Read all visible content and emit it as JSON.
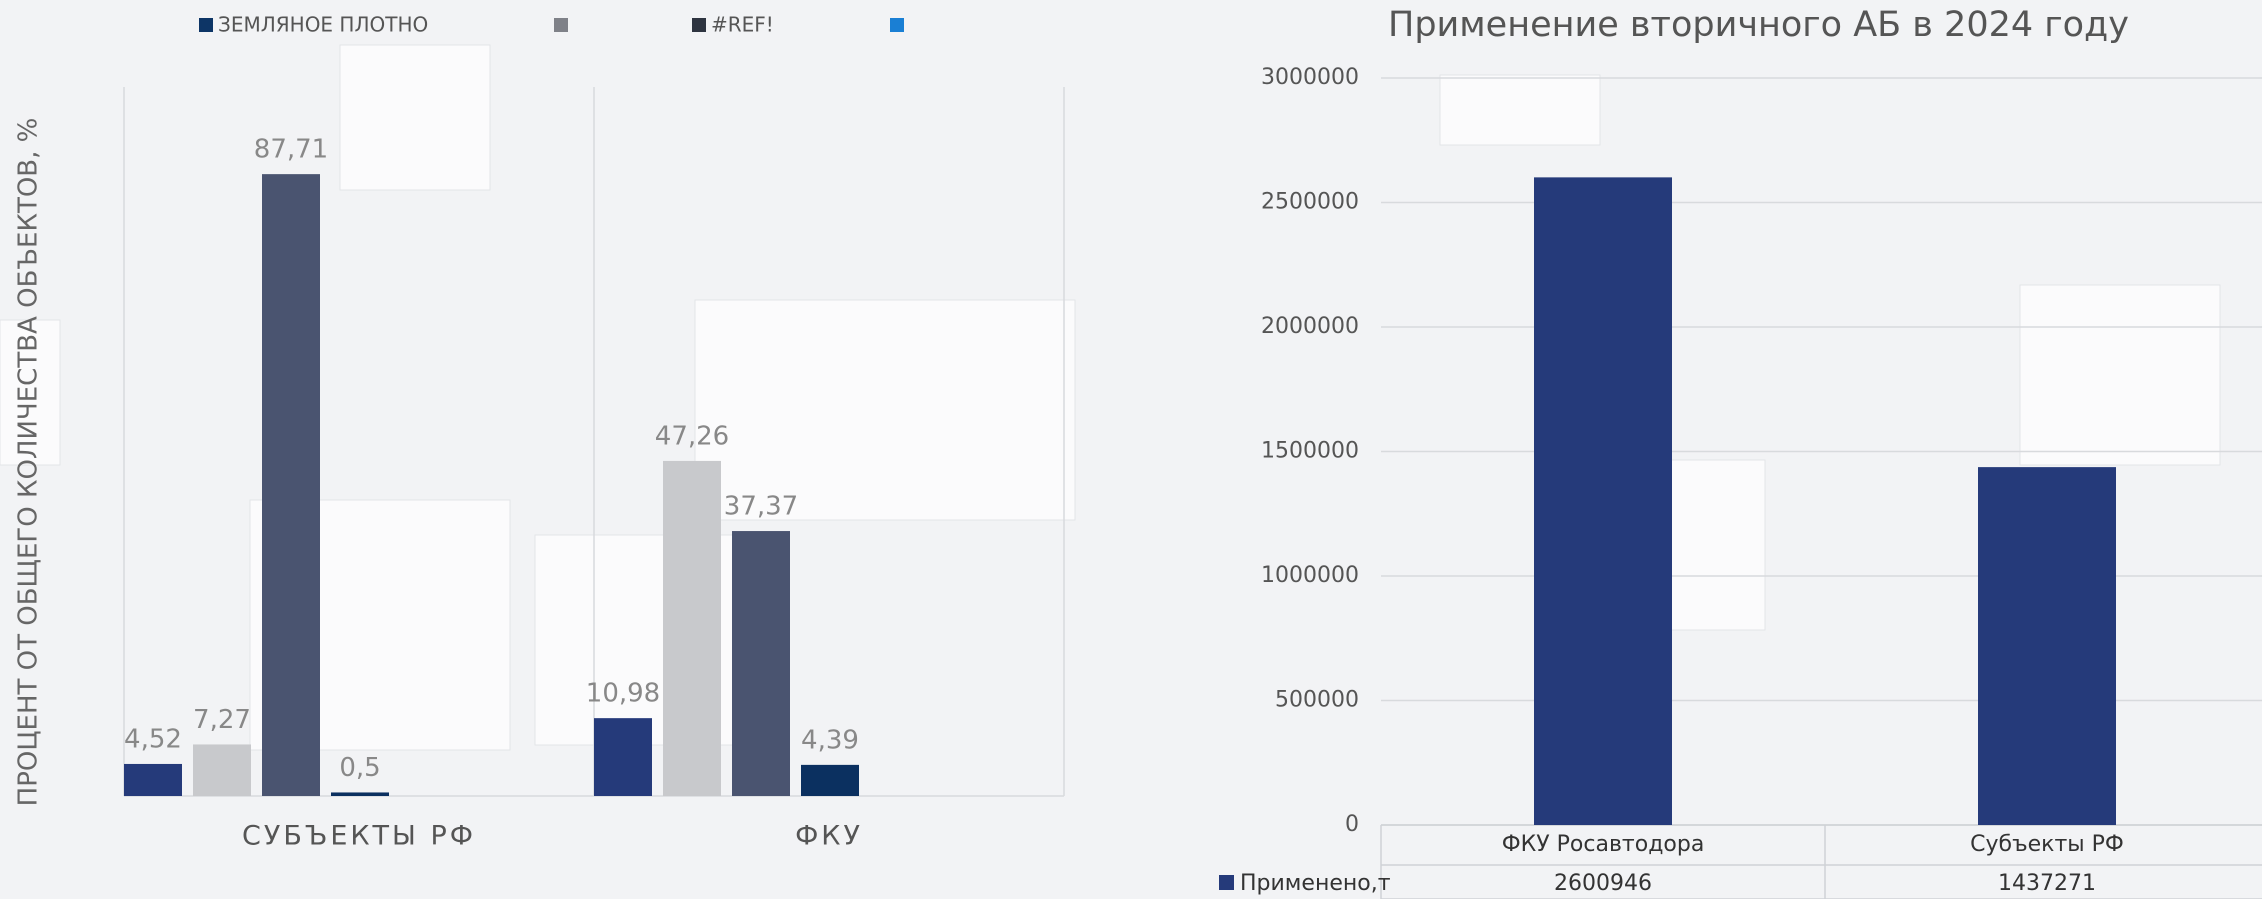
{
  "chart_data": [
    {
      "type": "bar",
      "y_label": "ПРОЦЕНТ ОТ ОБЩЕГО КОЛИЧЕСТВА ОБЪЕКТОВ, %",
      "categories": [
        "СУБЪЕКТЫ РФ",
        "ФКУ"
      ],
      "series": [
        {
          "name": "ЗЕМЛЯНОЕ ПЛОТНО",
          "color": "#253a7a",
          "legend_color": "#0d3566",
          "values": [
            4.52,
            10.98
          ],
          "value_labels": [
            "4,52",
            "10,98"
          ]
        },
        {
          "color": "#c8c9cc",
          "legend_color": "#7f8188",
          "values": [
            7.27,
            47.26
          ],
          "value_labels": [
            "7,27",
            "47,26"
          ]
        },
        {
          "name": "#REF!",
          "color": "#4a5470",
          "legend_color": "#2e3440",
          "values": [
            87.71,
            37.37
          ],
          "value_labels": [
            "87,71",
            "37,37"
          ]
        },
        {
          "color": "#0b3060",
          "legend_color": "#1a7fd4",
          "values": [
            0.5,
            4.39
          ],
          "value_labels": [
            "0,5",
            "4,39"
          ]
        }
      ],
      "ylim": [
        0,
        100
      ]
    },
    {
      "type": "bar",
      "title": "Применение вторичного АБ в 2024 году",
      "categories": [
        "ФКУ Росавтодора",
        "Субъекты РФ"
      ],
      "series": [
        {
          "name": "Применено,т",
          "color": "#253a7a",
          "values": [
            2600946,
            1437271
          ]
        }
      ],
      "ylim": [
        0,
        3000000
      ],
      "yticks": [
        0,
        500000,
        1000000,
        1500000,
        2000000,
        2500000,
        3000000
      ],
      "grid": true,
      "data_table": true
    }
  ]
}
